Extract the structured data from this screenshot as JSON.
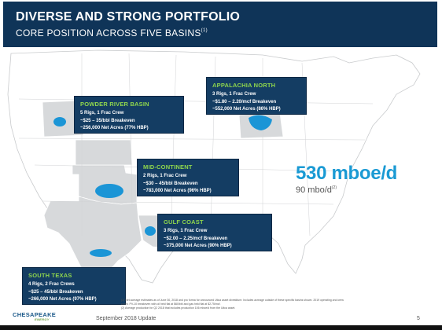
{
  "header": {
    "title": "DIVERSE AND STRONG PORTFOLIO",
    "subtitle": "CORE POSITION ACROSS FIVE BASINS",
    "subtitle_note": "(1)"
  },
  "basins": {
    "powder_river": {
      "title": "POWDER RIVER BASIN",
      "lines": [
        "5 Rigs, 1 Frac Crew",
        "~$25 – 35/bbl Breakeven",
        "~256,000 Net Acres (77% HBP)"
      ]
    },
    "appalachia": {
      "title": "APPALACHIA NORTH",
      "lines": [
        "3 Rigs, 1 Frac Crew",
        "~$1.80 – 2.20/mcf Breakeven",
        "~552,000 Net Acres (86% HBP)"
      ]
    },
    "mid_continent": {
      "title": "MID-CONTINENT",
      "lines": [
        "2 Rigs, 1 Frac Crew",
        "~$30 – 45/bbl Breakeven",
        "~783,000 Net Acres (96% HBP)"
      ]
    },
    "gulf_coast": {
      "title": "GULF COAST",
      "lines": [
        "3 Rigs, 1 Frac Crew",
        "~$2.00 – 2.25/mcf Breakeven",
        "~375,000 Net Acres (90% HBP)"
      ]
    },
    "south_texas": {
      "title": "SOUTH TEXAS",
      "lines": [
        "4 Rigs, 2 Frac Crews",
        "~$25 – 45/bbl Breakeven",
        "~266,000 Net Acres (97% HBP)"
      ]
    }
  },
  "production": {
    "total": "530 mboe/d",
    "oil": "90 mbo/d",
    "oil_note": "(2)"
  },
  "footnotes": [
    "(1) Net acreage estimates as of June 30, 2018 and pro forma for announced Utica asset divestiture. Includes acreage outside of these specific basins shown. 2019 operating and crew count. PV-10 breakeven with oil held flat at $60/bbl and gas held flat at $2.75/mcf.",
    "(2) Average production for Q2 2018 that includes production 106 mboe/d from the Utica asset."
  ],
  "footer": {
    "logo": "CHESAPEAKE",
    "logo_sub": "ENERGY",
    "date": "September 2018 Update",
    "page": "5"
  },
  "colors": {
    "header_bg": "#0f3458",
    "box_bg": "#143d63",
    "box_title": "#8fd64d",
    "accent_blue": "#1a9ad4",
    "basin_fill": "#1b95d6",
    "state_fill": "#d7d9db"
  }
}
